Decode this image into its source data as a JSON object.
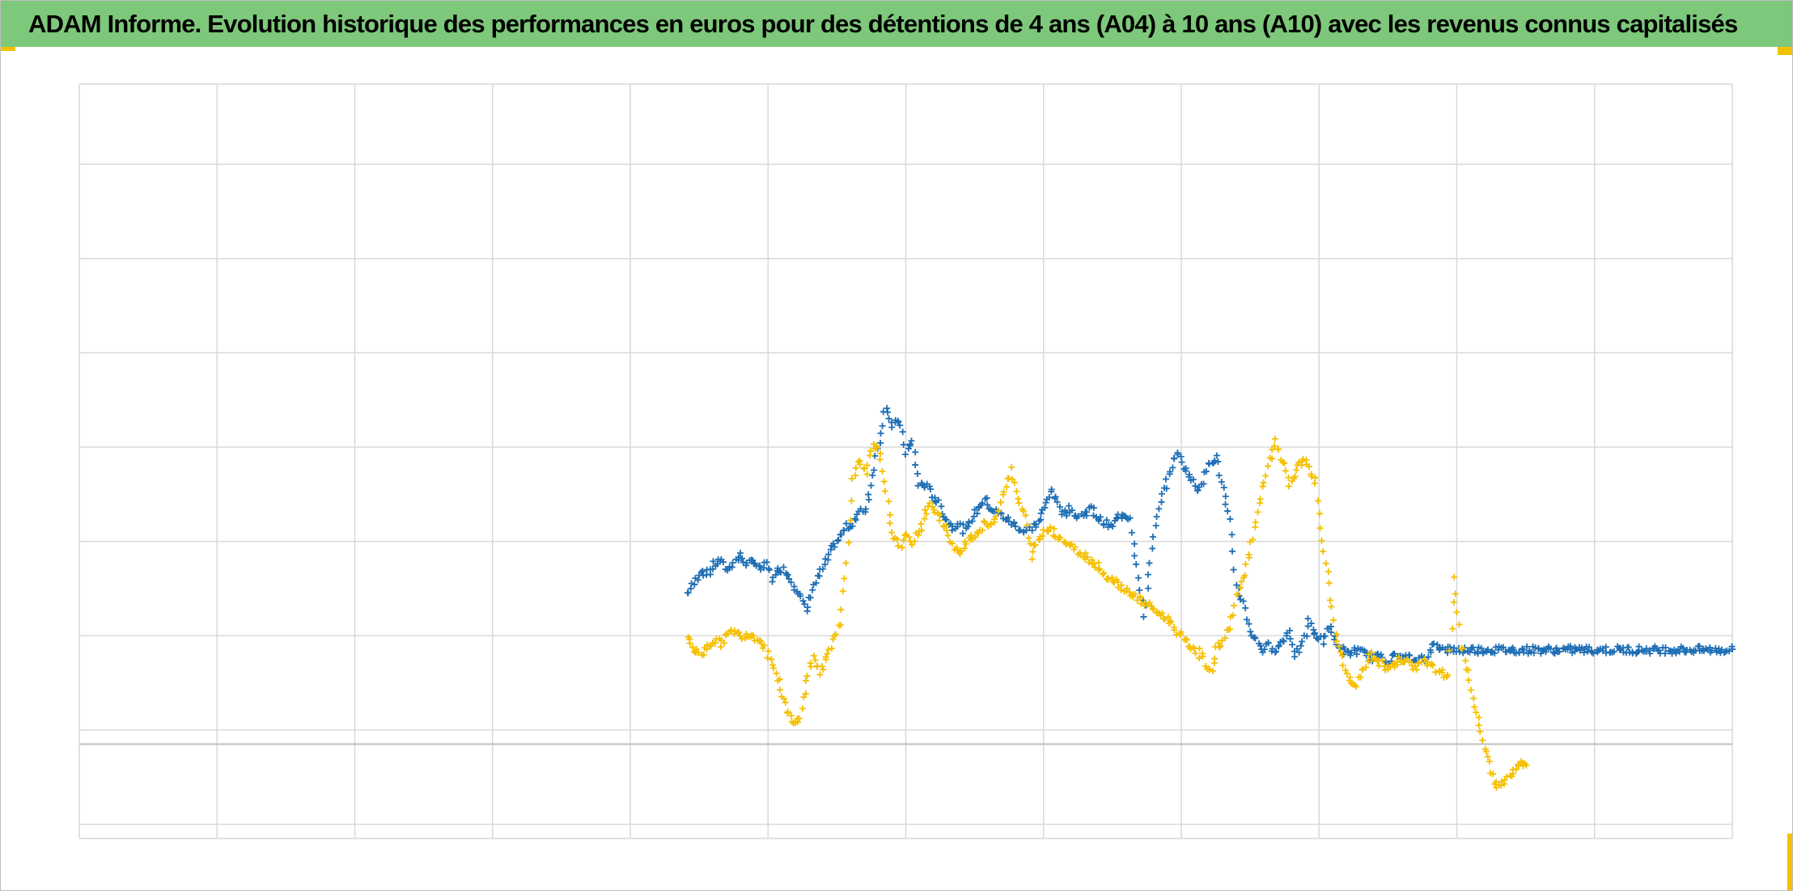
{
  "title": "ADAM Informe. Evolution historique des performances en euros pour des détentions de 4 ans (A04) à 10 ans (A10) avec les revenus connus capitalisés",
  "colors": {
    "title_bar": "#7dc87a",
    "corner_accent": "#f2c200",
    "grid": "#d9d9d9",
    "zero_line": "#bfbfbf",
    "series_blue": "#1f6fb5",
    "series_yellow": "#f5c000"
  },
  "chart_data": {
    "type": "scatter",
    "title": "ADAM Informe. Evolution historique des performances en euros pour des détentions de 4 ans (A04) à 10 ans (A10) avec les revenus connus capitalisés",
    "xlabel": "",
    "ylabel": "",
    "xlim": [
      0,
      12.5
    ],
    "ylim": [
      -1.15,
      6.85
    ],
    "x_gridlines": 12,
    "y_gridlines": [
      -1,
      0,
      1,
      2,
      3,
      4,
      5,
      6
    ],
    "zero_line": -0.15,
    "grid": true,
    "legend": "none",
    "marker": "+",
    "series": [
      {
        "color": "#1f6fb5",
        "points": [
          [
            4.6,
            1.45
          ],
          [
            4.65,
            1.55
          ],
          [
            4.7,
            1.7
          ],
          [
            4.75,
            1.65
          ],
          [
            4.8,
            1.75
          ],
          [
            4.85,
            1.8
          ],
          [
            4.9,
            1.7
          ],
          [
            4.95,
            1.78
          ],
          [
            5.0,
            1.85
          ],
          [
            5.05,
            1.75
          ],
          [
            5.1,
            1.8
          ],
          [
            5.15,
            1.7
          ],
          [
            5.2,
            1.75
          ],
          [
            5.25,
            1.6
          ],
          [
            5.3,
            1.72
          ],
          [
            5.35,
            1.68
          ],
          [
            5.4,
            1.55
          ],
          [
            5.45,
            1.45
          ],
          [
            5.5,
            1.25
          ],
          [
            5.55,
            1.5
          ],
          [
            5.7,
            1.95
          ],
          [
            5.75,
            2.05
          ],
          [
            5.8,
            2.15
          ],
          [
            5.85,
            2.2
          ],
          [
            5.9,
            2.3
          ],
          [
            5.95,
            2.35
          ],
          [
            6.0,
            2.7
          ],
          [
            6.1,
            3.45
          ],
          [
            6.15,
            3.2
          ],
          [
            6.2,
            3.3
          ],
          [
            6.25,
            2.95
          ],
          [
            6.3,
            3.05
          ],
          [
            6.35,
            2.6
          ],
          [
            6.4,
            2.6
          ],
          [
            6.45,
            2.5
          ],
          [
            6.5,
            2.4
          ],
          [
            6.55,
            2.25
          ],
          [
            6.6,
            2.15
          ],
          [
            6.65,
            2.2
          ],
          [
            6.7,
            2.1
          ],
          [
            6.75,
            2.25
          ],
          [
            6.8,
            2.35
          ],
          [
            6.85,
            2.45
          ],
          [
            6.9,
            2.35
          ],
          [
            6.95,
            2.3
          ],
          [
            7.0,
            2.25
          ],
          [
            7.05,
            2.2
          ],
          [
            7.1,
            2.15
          ],
          [
            7.15,
            2.1
          ],
          [
            7.2,
            2.15
          ],
          [
            7.25,
            2.2
          ],
          [
            7.3,
            2.35
          ],
          [
            7.35,
            2.55
          ],
          [
            7.4,
            2.4
          ],
          [
            7.45,
            2.3
          ],
          [
            7.5,
            2.35
          ],
          [
            7.55,
            2.25
          ],
          [
            7.6,
            2.3
          ],
          [
            7.65,
            2.35
          ],
          [
            7.7,
            2.25
          ],
          [
            7.75,
            2.2
          ],
          [
            7.8,
            2.15
          ],
          [
            7.85,
            2.25
          ],
          [
            7.9,
            2.3
          ],
          [
            7.95,
            2.25
          ],
          [
            8.0,
            1.75
          ],
          [
            8.05,
            1.2
          ],
          [
            8.1,
            1.8
          ],
          [
            8.15,
            2.25
          ],
          [
            8.2,
            2.55
          ],
          [
            8.25,
            2.75
          ],
          [
            8.3,
            2.95
          ],
          [
            8.35,
            2.8
          ],
          [
            8.4,
            2.7
          ],
          [
            8.45,
            2.55
          ],
          [
            8.5,
            2.65
          ],
          [
            8.55,
            2.85
          ],
          [
            8.6,
            2.9
          ],
          [
            8.65,
            2.55
          ],
          [
            8.7,
            2.2
          ],
          [
            8.75,
            1.55
          ],
          [
            8.8,
            1.35
          ],
          [
            8.85,
            1.05
          ],
          [
            8.9,
            0.95
          ],
          [
            8.95,
            0.85
          ],
          [
            9.0,
            0.9
          ],
          [
            9.05,
            0.85
          ],
          [
            9.1,
            0.95
          ],
          [
            9.15,
            1.05
          ],
          [
            9.2,
            0.8
          ],
          [
            9.25,
            0.9
          ],
          [
            9.3,
            1.15
          ],
          [
            9.35,
            1.0
          ],
          [
            9.4,
            0.95
          ],
          [
            9.45,
            1.1
          ],
          [
            9.5,
            0.95
          ],
          [
            9.55,
            0.85
          ],
          [
            9.6,
            0.8
          ],
          [
            9.65,
            0.85
          ],
          [
            9.7,
            0.82
          ],
          [
            9.75,
            0.78
          ],
          [
            9.8,
            0.75
          ],
          [
            9.85,
            0.8
          ],
          [
            9.9,
            0.72
          ],
          [
            9.95,
            0.8
          ],
          [
            10.0,
            0.75
          ],
          [
            10.05,
            0.78
          ],
          [
            10.1,
            0.7
          ],
          [
            10.15,
            0.78
          ],
          [
            10.2,
            0.75
          ],
          [
            10.25,
            0.95
          ],
          [
            10.3,
            0.85
          ],
          [
            10.4,
            0.85
          ],
          [
            10.6,
            0.85
          ],
          [
            10.8,
            0.85
          ],
          [
            11.0,
            0.85
          ],
          [
            11.2,
            0.85
          ],
          [
            11.4,
            0.85
          ],
          [
            11.6,
            0.85
          ],
          [
            11.8,
            0.85
          ],
          [
            12.0,
            0.85
          ],
          [
            12.2,
            0.85
          ],
          [
            12.4,
            0.85
          ],
          [
            12.5,
            0.85
          ]
        ]
      },
      {
        "color": "#f5c000",
        "points": [
          [
            4.6,
            1.0
          ],
          [
            4.65,
            0.85
          ],
          [
            4.7,
            0.8
          ],
          [
            4.75,
            0.9
          ],
          [
            4.8,
            0.95
          ],
          [
            4.85,
            0.92
          ],
          [
            4.9,
            1.0
          ],
          [
            4.95,
            1.05
          ],
          [
            5.0,
            1.0
          ],
          [
            5.05,
            1.02
          ],
          [
            5.1,
            1.0
          ],
          [
            5.15,
            0.95
          ],
          [
            5.2,
            0.85
          ],
          [
            5.25,
            0.65
          ],
          [
            5.3,
            0.45
          ],
          [
            5.35,
            0.2
          ],
          [
            5.4,
            0.05
          ],
          [
            5.45,
            0.15
          ],
          [
            5.5,
            0.5
          ],
          [
            5.55,
            0.8
          ],
          [
            5.6,
            0.6
          ],
          [
            5.65,
            0.75
          ],
          [
            5.7,
            0.95
          ],
          [
            5.75,
            1.15
          ],
          [
            5.8,
            1.75
          ],
          [
            5.85,
            2.7
          ],
          [
            5.9,
            2.85
          ],
          [
            5.95,
            2.75
          ],
          [
            6.0,
            3.0
          ],
          [
            6.05,
            2.95
          ],
          [
            6.1,
            2.5
          ],
          [
            6.15,
            2.1
          ],
          [
            6.2,
            1.95
          ],
          [
            6.25,
            2.05
          ],
          [
            6.3,
            2.0
          ],
          [
            6.35,
            2.1
          ],
          [
            6.4,
            2.3
          ],
          [
            6.45,
            2.4
          ],
          [
            6.5,
            2.25
          ],
          [
            6.55,
            2.15
          ],
          [
            6.6,
            1.95
          ],
          [
            6.65,
            1.85
          ],
          [
            6.7,
            2.0
          ],
          [
            6.75,
            2.05
          ],
          [
            6.8,
            2.1
          ],
          [
            6.85,
            2.2
          ],
          [
            6.9,
            2.15
          ],
          [
            6.95,
            2.35
          ],
          [
            7.0,
            2.55
          ],
          [
            7.05,
            2.75
          ],
          [
            7.1,
            2.45
          ],
          [
            7.15,
            2.25
          ],
          [
            7.2,
            1.85
          ],
          [
            7.25,
            2.0
          ],
          [
            7.3,
            2.1
          ],
          [
            7.35,
            2.15
          ],
          [
            7.4,
            2.05
          ],
          [
            7.45,
            2.0
          ],
          [
            7.5,
            1.95
          ],
          [
            7.55,
            1.9
          ],
          [
            7.6,
            1.85
          ],
          [
            7.65,
            1.8
          ],
          [
            7.7,
            1.75
          ],
          [
            7.75,
            1.65
          ],
          [
            7.8,
            1.6
          ],
          [
            7.85,
            1.55
          ],
          [
            7.9,
            1.5
          ],
          [
            7.95,
            1.45
          ],
          [
            8.0,
            1.4
          ],
          [
            8.05,
            1.35
          ],
          [
            8.1,
            1.3
          ],
          [
            8.15,
            1.25
          ],
          [
            8.2,
            1.2
          ],
          [
            8.25,
            1.15
          ],
          [
            8.3,
            1.05
          ],
          [
            8.35,
            0.95
          ],
          [
            8.4,
            0.9
          ],
          [
            8.45,
            0.85
          ],
          [
            8.5,
            0.75
          ],
          [
            8.55,
            0.6
          ],
          [
            8.6,
            0.85
          ],
          [
            8.65,
            0.95
          ],
          [
            8.7,
            1.1
          ],
          [
            8.75,
            1.4
          ],
          [
            8.8,
            1.6
          ],
          [
            8.85,
            1.9
          ],
          [
            8.9,
            2.2
          ],
          [
            8.95,
            2.55
          ],
          [
            9.0,
            2.85
          ],
          [
            9.05,
            3.05
          ],
          [
            9.1,
            2.85
          ],
          [
            9.15,
            2.6
          ],
          [
            9.2,
            2.75
          ],
          [
            9.25,
            2.85
          ],
          [
            9.3,
            2.8
          ],
          [
            9.35,
            2.6
          ],
          [
            9.4,
            2.0
          ],
          [
            9.45,
            1.55
          ],
          [
            9.5,
            1.0
          ],
          [
            9.55,
            0.75
          ],
          [
            9.6,
            0.55
          ],
          [
            9.65,
            0.45
          ],
          [
            9.7,
            0.6
          ],
          [
            9.75,
            0.8
          ],
          [
            9.8,
            0.75
          ],
          [
            9.85,
            0.7
          ],
          [
            9.9,
            0.65
          ],
          [
            9.95,
            0.7
          ],
          [
            10.0,
            0.75
          ],
          [
            10.05,
            0.7
          ],
          [
            10.1,
            0.65
          ],
          [
            10.15,
            0.75
          ],
          [
            10.2,
            0.7
          ],
          [
            10.25,
            0.65
          ],
          [
            10.3,
            0.6
          ],
          [
            10.35,
            0.55
          ],
          [
            10.4,
            1.65
          ],
          [
            10.45,
            0.9
          ],
          [
            10.5,
            0.6
          ],
          [
            10.55,
            0.25
          ],
          [
            10.6,
            -0.05
          ],
          [
            10.65,
            -0.3
          ],
          [
            10.7,
            -0.55
          ],
          [
            10.75,
            -0.6
          ],
          [
            10.8,
            -0.5
          ],
          [
            10.85,
            -0.45
          ],
          [
            10.9,
            -0.35
          ],
          [
            10.95,
            -0.4
          ]
        ]
      }
    ]
  }
}
